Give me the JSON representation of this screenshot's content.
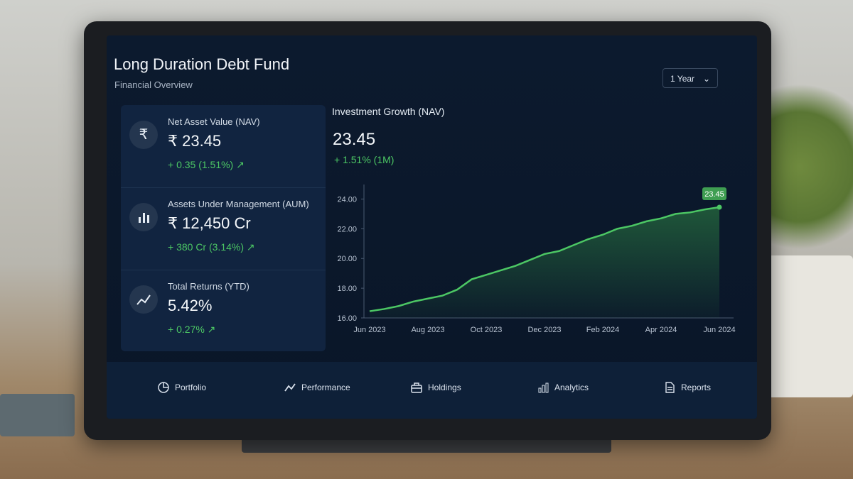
{
  "header": {
    "title": "Long Duration Debt Fund",
    "subtitle": "Financial Overview",
    "period": "1 Year"
  },
  "metrics": [
    {
      "icon": "₹",
      "label": "Net Asset Value (NAV)",
      "value": "₹ 23.45",
      "change": "+ 0.35 (1.51%)"
    },
    {
      "label": "Assets Under Management (AUM)",
      "value": "₹ 12,450 Cr",
      "change": "+ 380 Cr (3.14%)"
    },
    {
      "label": "Total Returns (YTD)",
      "value": "5.42%",
      "change": "+ 0.27%"
    }
  ],
  "chart_data": {
    "type": "line",
    "title": "Investment Growth (NAV)",
    "current_value": "23.45",
    "change": "+ 1.51% (1M)",
    "categories": [
      "Jun 2023",
      null,
      null,
      null,
      "Aug 2023",
      null,
      null,
      null,
      "Oct 2023",
      null,
      null,
      null,
      "Dec 2023",
      null,
      null,
      null,
      "Feb 2024",
      null,
      null,
      null,
      "Apr 2024",
      null,
      null,
      null,
      "Jun 2024"
    ],
    "values": [
      16.45,
      16.6,
      16.8,
      17.1,
      17.3,
      17.5,
      17.9,
      18.6,
      18.9,
      19.2,
      19.5,
      19.9,
      20.3,
      20.5,
      20.9,
      21.3,
      21.6,
      22.0,
      22.2,
      22.5,
      22.7,
      23.0,
      23.1,
      23.3,
      23.45
    ],
    "color": "#4cc764",
    "ylim": [
      16,
      24.5
    ],
    "yticks": [
      {
        "value": 16,
        "label": "16.00"
      },
      {
        "value": 18,
        "label": "18.00"
      },
      {
        "value": 20,
        "label": "20.00"
      },
      {
        "value": 22,
        "label": "22.00"
      },
      {
        "value": 24,
        "label": "24.00"
      }
    ]
  },
  "nav": [
    "Portfolio",
    "Performance",
    "Holdings",
    "Analytics",
    "Reports"
  ]
}
